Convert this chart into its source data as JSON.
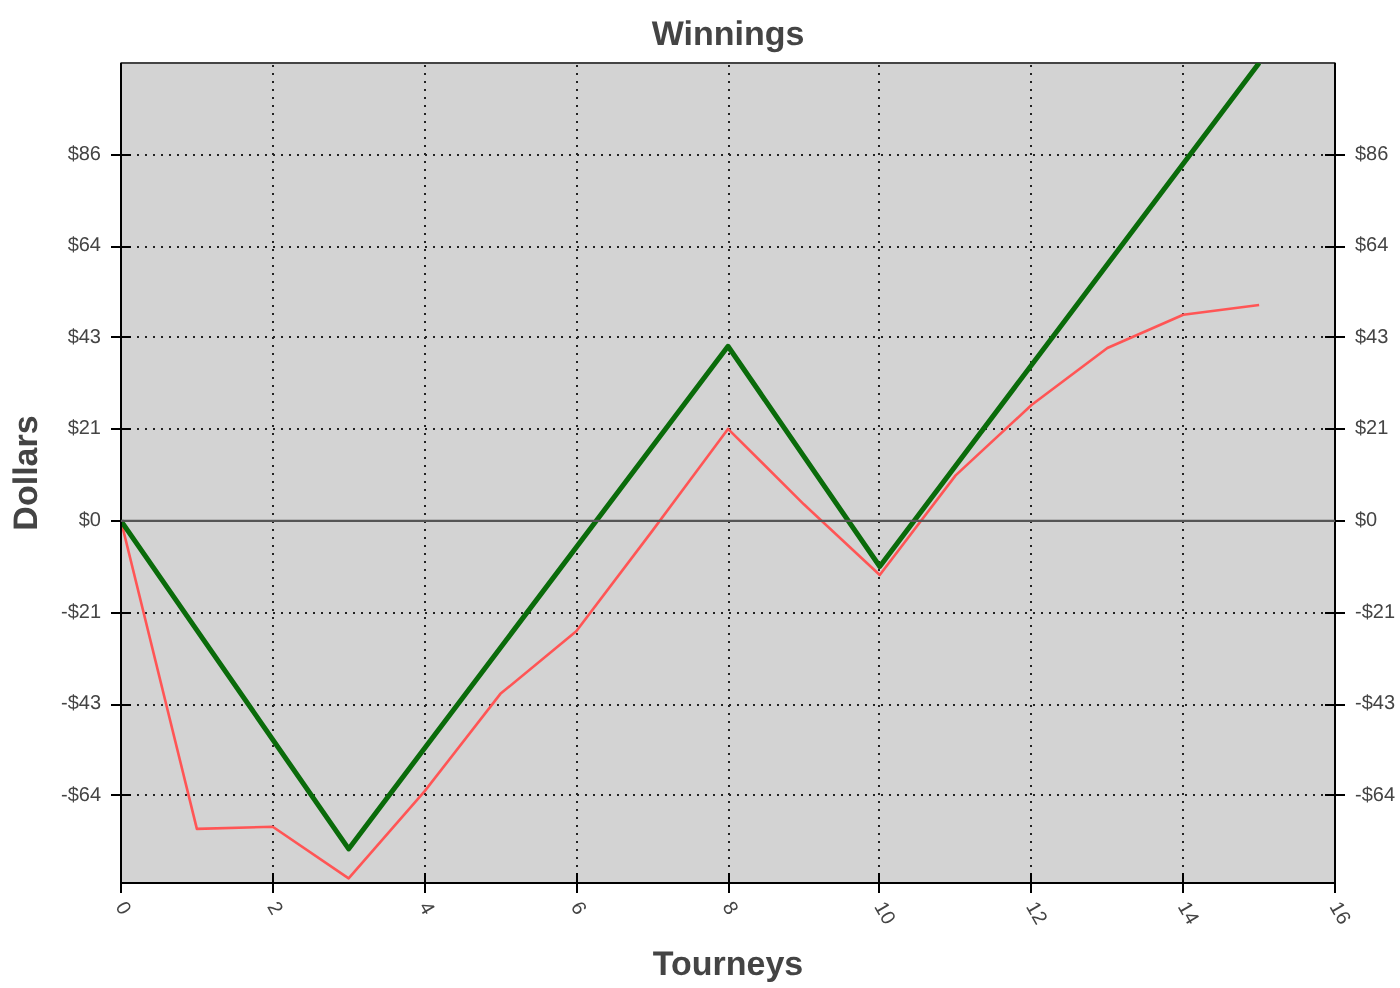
{
  "chart_data": {
    "type": "line",
    "title": "Winnings",
    "xlabel": "Tourneys",
    "ylabel": "Dollars",
    "x": [
      0,
      1,
      2,
      3,
      4,
      5,
      6,
      7,
      8,
      9,
      10,
      11,
      12,
      13,
      14,
      15
    ],
    "series": [
      {
        "color": "#ff5555",
        "values": [
          0,
          -72.3,
          -71.8,
          -83.9,
          -63.5,
          -40.6,
          -25.9,
          -2.4,
          21.6,
          3.9,
          -12.7,
          10.7,
          27.2,
          40.6,
          48.4,
          50.7
        ]
      },
      {
        "color": "#0a6b0a",
        "x": [
          0,
          3,
          8,
          10,
          15
        ],
        "values": [
          0,
          -77,
          41,
          -10.7,
          107.5
        ]
      }
    ],
    "xlim": [
      0,
      16
    ],
    "xticks": [
      0,
      2,
      4,
      6,
      8,
      10,
      12,
      14,
      16
    ],
    "ylim": [
      -85,
      107.5
    ],
    "yticks": [
      {
        "value": -64.5,
        "label": "-$64"
      },
      {
        "value": -43,
        "label": "-$43"
      },
      {
        "value": -21.5,
        "label": "-$21"
      },
      {
        "value": 0,
        "label": "$0"
      },
      {
        "value": 21.5,
        "label": "$21"
      },
      {
        "value": 43,
        "label": "$43"
      },
      {
        "value": 64.5,
        "label": "$64"
      },
      {
        "value": 86,
        "label": "$86"
      }
    ],
    "y2lim": [
      -85,
      107.5
    ],
    "y2ticks": [
      {
        "value": -64.5,
        "label": "-$64"
      },
      {
        "value": -43,
        "label": "-$43"
      },
      {
        "value": -21.5,
        "label": "-$21"
      },
      {
        "value": 0,
        "label": "$0"
      },
      {
        "value": 21.5,
        "label": "$21"
      },
      {
        "value": 43,
        "label": "$43"
      },
      {
        "value": 64.5,
        "label": "$64"
      },
      {
        "value": 86,
        "label": "$86"
      }
    ],
    "ref_lines": [
      {
        "axis": "y",
        "value": 0,
        "color": "#555555"
      }
    ],
    "grid": true,
    "marker": "none",
    "line_style": "solid"
  }
}
